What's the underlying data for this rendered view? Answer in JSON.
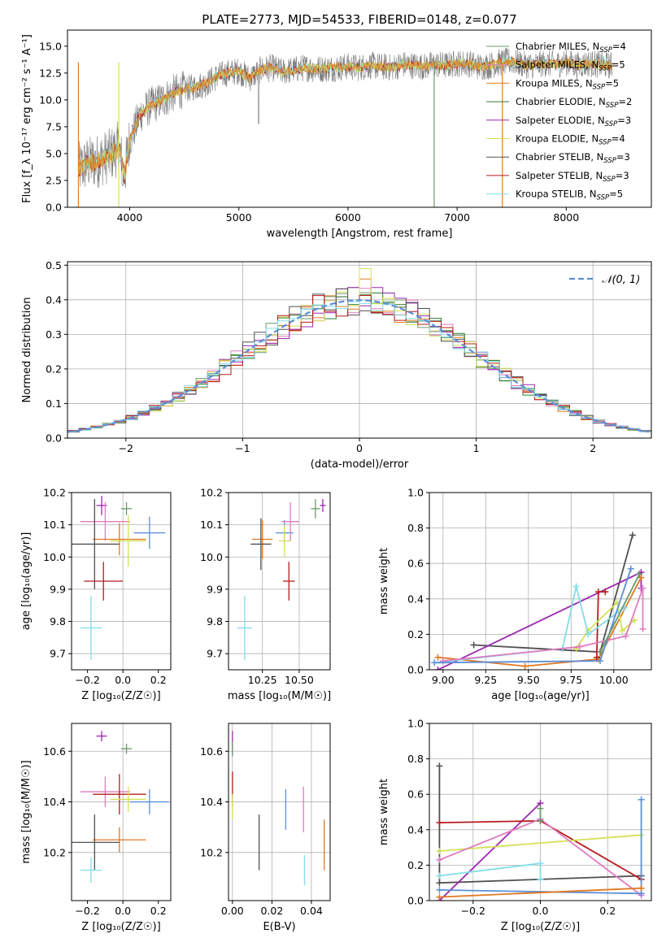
{
  "colors": [
    "#6a9a6a",
    "#e07bc0",
    "#e08020",
    "#2e7d32",
    "#9c27b0",
    "#d4e157",
    "#505050",
    "#b71c1c",
    "#80deea"
  ],
  "colors_named": {
    "chabrier_miles": "#6a9a6a",
    "salpeter_miles": "#8a8a8a",
    "kroupa_miles": "#e08020",
    "chabrier_elodie": "#2e7d32",
    "salpeter_elodie": "#9c27b0",
    "kroupa_elodie": "#d4e157",
    "chabrier_stelib": "#505050",
    "salpeter_stelib": "#b71c1c",
    "kroupa_stelib": "#80deea",
    "blue": "#5b8fd9",
    "pink": "#e07bc0",
    "orange": "#e07820",
    "dkgray": "#505050",
    "red": "#b71c1c",
    "cyan": "#80deea",
    "purple": "#9c27b0",
    "lime": "#d4e157",
    "green": "#6a9a6a"
  },
  "chart_data": [
    {
      "type": "line",
      "title": "PLATE=2773, MJD=54533, FIBERID=0148, z=0.077",
      "xlabel": "wavelength [Angstrom, rest frame]",
      "ylabel": "Flux [f_λ 10⁻¹⁷ erg cm⁻² s⁻¹ A⁻¹]",
      "xlim": [
        3430,
        8780
      ],
      "ylim": [
        0,
        16.5
      ],
      "xticks": [
        "4000",
        "5000",
        "6000",
        "7000",
        "8000"
      ],
      "yticks": [
        "0.0",
        "2.5",
        "5.0",
        "7.5",
        "10.0",
        "12.5",
        "15.0"
      ],
      "legend_position": "right",
      "legend": [
        {
          "label": "Chabrier MILES, N",
          "sub": "SSP",
          "val": "=4"
        },
        {
          "label": "Salpeter MILES, N",
          "sub": "SSP",
          "val": "=5"
        },
        {
          "label": "Kroupa MILES, N",
          "sub": "SSP",
          "val": "=5"
        },
        {
          "label": "Chabrier ELODIE, N",
          "sub": "SSP",
          "val": "=2"
        },
        {
          "label": "Salpeter ELODIE, N",
          "sub": "SSP",
          "val": "=3"
        },
        {
          "label": "Kroupa ELODIE, N",
          "sub": "SSP",
          "val": "=4"
        },
        {
          "label": "Chabrier STELIB, N",
          "sub": "SSP",
          "val": "=3"
        },
        {
          "label": "Salpeter STELIB, N",
          "sub": "SSP",
          "val": "=3"
        },
        {
          "label": "Kroupa STELIB, N",
          "sub": "SSP",
          "val": "=5"
        }
      ],
      "spectrum_anchors": {
        "x": [
          3530,
          3600,
          3700,
          3800,
          3900,
          3950,
          4000,
          4100,
          4200,
          4300,
          4400,
          4500,
          4600,
          4700,
          4800,
          4900,
          5000,
          5100,
          5200,
          5300,
          5400,
          5500,
          5600,
          5700,
          5800,
          5900,
          6000,
          6100,
          6200,
          6300,
          6400,
          6500,
          6600,
          6700,
          6800,
          6900,
          7000,
          7100,
          7200,
          7300,
          7400,
          7500,
          7600,
          7700,
          7800,
          7900,
          8000,
          8100,
          8200,
          8300,
          8400
        ],
        "y": [
          3.5,
          4.0,
          4.3,
          4.7,
          5.5,
          3.0,
          6.2,
          8.7,
          9.5,
          10.0,
          10.6,
          11.0,
          11.2,
          11.5,
          12.2,
          12.5,
          12.7,
          12.0,
          12.8,
          13.0,
          12.6,
          12.8,
          13.0,
          12.9,
          12.9,
          13.0,
          13.1,
          13.0,
          13.2,
          13.1,
          13.0,
          13.3,
          13.2,
          13.1,
          13.3,
          13.2,
          13.4,
          13.4,
          13.1,
          13.2,
          13.5,
          13.6,
          13.3,
          13.2,
          13.4,
          13.3,
          13.5,
          13.2,
          13.4,
          13.3,
          13.2
        ]
      },
      "vertical_spikes": [
        {
          "x": 3530,
          "color": "#e08020"
        },
        {
          "x": 3900,
          "color": "#d4e157"
        },
        {
          "x": 6790,
          "color": "#6a9a6a"
        },
        {
          "x": 7415,
          "color": "#e08020"
        }
      ]
    },
    {
      "type": "bar",
      "subtype": "step-histograms",
      "xlabel": "(data-model)/error",
      "ylabel": "Normed distribution",
      "xlim": [
        -2.5,
        2.5
      ],
      "ylim": [
        0,
        0.51
      ],
      "xticks": [
        "−2",
        "−1",
        "0",
        "1",
        "2"
      ],
      "yticks": [
        "0.0",
        "0.1",
        "0.2",
        "0.3",
        "0.4",
        "0.5"
      ],
      "grid": true,
      "legend_position": "top-right",
      "legend": [
        {
          "label": "𝒩(0, 1)",
          "style": "dashed",
          "color": "#5b8fd9"
        }
      ],
      "bin_width": 0.1,
      "peak_values": [
        0.46,
        0.49
      ],
      "series_count": 9
    },
    {
      "type": "scatter",
      "subtype": "errorbar",
      "xlabel": "Z [log₁₀(Z/Z☉)]",
      "ylabel": "age  [log₁₀(age/yr)]",
      "xlim": [
        -0.29,
        0.27
      ],
      "ylim": [
        9.65,
        10.2
      ],
      "xticks": [
        "−0.2",
        "0.0",
        "0.2"
      ],
      "yticks": [
        "9.7",
        "9.8",
        "9.9",
        "10.0",
        "10.1",
        "10.2"
      ],
      "points": [
        {
          "x": -0.12,
          "y": 10.16,
          "xerr": 0.03,
          "yerr": 0.03,
          "color": "#9c27b0"
        },
        {
          "x": 0.02,
          "y": 10.15,
          "xerr": 0.03,
          "yerr": 0.02,
          "color": "#6a9a6a"
        },
        {
          "x": 0.15,
          "y": 10.075,
          "xerr": 0.09,
          "yerr": 0.05,
          "color": "#5b8fd9"
        },
        {
          "x": -0.1,
          "y": 10.11,
          "xerr": 0.14,
          "yerr": 0.06,
          "color": "#e07bc0"
        },
        {
          "x": -0.02,
          "y": 10.055,
          "xerr": 0.15,
          "yerr": 0.05,
          "color": "#e07820"
        },
        {
          "x": 0.03,
          "y": 10.05,
          "xerr": 0.1,
          "yerr": 0.08,
          "color": "#d4e157"
        },
        {
          "x": -0.16,
          "y": 10.04,
          "xerr": 0.14,
          "yerr": 0.14,
          "color": "#505050"
        },
        {
          "x": -0.11,
          "y": 9.925,
          "xerr": 0.11,
          "yerr": 0.06,
          "color": "#b71c1c"
        },
        {
          "x": -0.18,
          "y": 9.78,
          "xerr": 0.06,
          "yerr": 0.1,
          "color": "#80deea"
        }
      ]
    },
    {
      "type": "scatter",
      "subtype": "errorbar",
      "xlabel": "mass [log₁₀(M/M☉)]",
      "xlim": [
        10.02,
        10.71
      ],
      "ylim": [
        9.65,
        10.2
      ],
      "xticks": [
        "10.25",
        "10.50"
      ],
      "yticks": [
        "9.7",
        "9.8",
        "9.9",
        "10.0",
        "10.1",
        "10.2"
      ],
      "points": [
        {
          "x": 10.66,
          "y": 10.16,
          "xerr": 0.02,
          "yerr": 0.02,
          "color": "#9c27b0"
        },
        {
          "x": 10.61,
          "y": 10.15,
          "xerr": 0.03,
          "yerr": 0.03,
          "color": "#6a9a6a"
        },
        {
          "x": 10.4,
          "y": 10.075,
          "xerr": 0.06,
          "yerr": 0.04,
          "color": "#5b8fd9"
        },
        {
          "x": 10.44,
          "y": 10.11,
          "xerr": 0.06,
          "yerr": 0.06,
          "color": "#e07bc0"
        },
        {
          "x": 10.25,
          "y": 10.055,
          "xerr": 0.07,
          "yerr": 0.06,
          "color": "#e07820"
        },
        {
          "x": 10.4,
          "y": 10.05,
          "xerr": 0.04,
          "yerr": 0.05,
          "color": "#d4e157"
        },
        {
          "x": 10.24,
          "y": 10.04,
          "xerr": 0.07,
          "yerr": 0.08,
          "color": "#505050"
        },
        {
          "x": 10.43,
          "y": 9.925,
          "xerr": 0.04,
          "yerr": 0.06,
          "color": "#b71c1c"
        },
        {
          "x": 10.13,
          "y": 9.78,
          "xerr": 0.05,
          "yerr": 0.1,
          "color": "#80deea"
        }
      ]
    },
    {
      "type": "line",
      "xlabel": "age  [log₁₀(age/yr)]",
      "ylabel": "mass weight",
      "xlim": [
        8.92,
        10.22
      ],
      "ylim": [
        0,
        1
      ],
      "xticks": [
        "9.00",
        "9.25",
        "9.50",
        "9.75",
        "10.00"
      ],
      "yticks": [
        "0.0",
        "0.2",
        "0.4",
        "0.6",
        "0.8",
        "1.0"
      ],
      "grid": true,
      "series": [
        {
          "color": "#505050",
          "x": [
            9.18,
            9.92,
            10.11
          ],
          "y": [
            0.14,
            0.1,
            0.76
          ]
        },
        {
          "color": "#9c27b0",
          "x": [
            8.97,
            10.16,
            10.16
          ],
          "y": [
            0.0,
            0.55,
            0.46
          ]
        },
        {
          "color": "#e07820",
          "x": [
            8.97,
            9.48,
            9.91,
            10.16
          ],
          "y": [
            0.07,
            0.02,
            0.06,
            0.52
          ]
        },
        {
          "color": "#b71c1c",
          "x": [
            9.9,
            9.91,
            9.95
          ],
          "y": [
            0.07,
            0.44,
            0.44
          ]
        },
        {
          "color": "#d4e157",
          "x": [
            9.78,
            9.85,
            10.02,
            10.05,
            10.12
          ],
          "y": [
            0.12,
            0.22,
            0.38,
            0.22,
            0.28
          ]
        },
        {
          "color": "#80deea",
          "x": [
            8.95,
            9.7,
            9.78,
            9.85,
            10.06
          ],
          "y": [
            0.04,
            0.12,
            0.47,
            0.2,
            0.35
          ]
        },
        {
          "color": "#e07bc0",
          "x": [
            9.0,
            9.8,
            10.07,
            10.17,
            10.17
          ],
          "y": [
            0.05,
            0.13,
            0.19,
            0.46,
            0.23
          ]
        },
        {
          "color": "#5b8fd9",
          "x": [
            8.95,
            9.92,
            10.1
          ],
          "y": [
            0.04,
            0.05,
            0.57
          ]
        },
        {
          "color": "#6a9a6a",
          "x": [
            9.92,
            10.15
          ],
          "y": [
            0.1,
            0.54
          ]
        }
      ]
    },
    {
      "type": "scatter",
      "subtype": "errorbar",
      "xlabel": "Z [log₁₀(Z/Z☉)]",
      "ylabel": "mass [log₁₀(M/M☉)]",
      "xlim": [
        -0.29,
        0.27
      ],
      "ylim": [
        10.01,
        10.71
      ],
      "xticks": [
        "−0.2",
        "0.0",
        "0.2"
      ],
      "yticks": [
        "10.2",
        "10.4",
        "10.6"
      ],
      "points": [
        {
          "x": -0.12,
          "y": 10.66,
          "xerr": 0.03,
          "yerr": 0.02,
          "color": "#9c27b0"
        },
        {
          "x": 0.02,
          "y": 10.61,
          "xerr": 0.03,
          "yerr": 0.02,
          "color": "#6a9a6a"
        },
        {
          "x": 0.15,
          "y": 10.4,
          "xerr": 0.11,
          "yerr": 0.05,
          "color": "#5b8fd9"
        },
        {
          "x": -0.1,
          "y": 10.44,
          "xerr": 0.14,
          "yerr": 0.06,
          "color": "#e07bc0"
        },
        {
          "x": -0.02,
          "y": 10.43,
          "xerr": 0.15,
          "yerr": 0.08,
          "color": "#b71c1c"
        },
        {
          "x": 0.03,
          "y": 10.41,
          "xerr": 0.1,
          "yerr": 0.05,
          "color": "#d4e157"
        },
        {
          "x": -0.02,
          "y": 10.25,
          "xerr": 0.15,
          "yerr": 0.05,
          "color": "#e07820"
        },
        {
          "x": -0.16,
          "y": 10.24,
          "xerr": 0.14,
          "yerr": 0.11,
          "color": "#505050"
        },
        {
          "x": -0.18,
          "y": 10.13,
          "xerr": 0.06,
          "yerr": 0.05,
          "color": "#80deea"
        }
      ]
    },
    {
      "type": "scatter",
      "subtype": "errorbar",
      "xlabel": "E(B-V)",
      "xlim": [
        -0.002,
        0.0495
      ],
      "ylim": [
        10.01,
        10.71
      ],
      "xticks": [
        "0.00",
        "0.02",
        "0.04"
      ],
      "yticks": [
        "10.2",
        "10.4",
        "10.6"
      ],
      "points": [
        {
          "x": 0.0,
          "y": 10.63,
          "yerr": 0.05,
          "color": "#9c27b0"
        },
        {
          "x": 0.0,
          "y": 10.45,
          "yerr": 0.07,
          "color": "#b71c1c"
        },
        {
          "x": 0.0,
          "y": 10.38,
          "yerr": 0.05,
          "color": "#d4e157"
        },
        {
          "x": 0.0,
          "y": 10.61,
          "yerr": 0.03,
          "color": "#6a9a6a"
        },
        {
          "x": 0.0135,
          "y": 10.24,
          "yerr": 0.11,
          "color": "#505050"
        },
        {
          "x": 0.027,
          "y": 10.37,
          "yerr": 0.08,
          "color": "#5b8fd9"
        },
        {
          "x": 0.036,
          "y": 10.37,
          "yerr": 0.09,
          "color": "#e07bc0"
        },
        {
          "x": 0.0365,
          "y": 10.13,
          "yerr": 0.06,
          "color": "#80deea"
        },
        {
          "x": 0.0465,
          "y": 10.23,
          "yerr": 0.1,
          "color": "#e07820"
        }
      ]
    },
    {
      "type": "line",
      "xlabel": "Z [log₁₀(Z/Z☉)]",
      "ylabel": "mass weight",
      "xlim": [
        -0.33,
        0.33
      ],
      "ylim": [
        0,
        1
      ],
      "xticks": [
        "−0.2",
        "0.0",
        "0.2"
      ],
      "yticks": [
        "0.0",
        "0.2",
        "0.4",
        "0.6",
        "0.8",
        "1.0"
      ],
      "grid": true,
      "series": [
        {
          "color": "#505050",
          "x": [
            -0.3,
            -0.3,
            0.3
          ],
          "y": [
            0.76,
            0.1,
            0.14
          ]
        },
        {
          "color": "#9c27b0",
          "x": [
            -0.3,
            0.0
          ],
          "y": [
            0.0,
            0.55
          ]
        },
        {
          "color": "#b71c1c",
          "x": [
            -0.3,
            0.0,
            0.3
          ],
          "y": [
            0.44,
            0.45,
            0.12
          ]
        },
        {
          "color": "#d4e157",
          "x": [
            -0.3,
            0.3
          ],
          "y": [
            0.28,
            0.37
          ]
        },
        {
          "color": "#e07bc0",
          "x": [
            -0.3,
            0.0,
            0.3
          ],
          "y": [
            0.23,
            0.46,
            0.03
          ]
        },
        {
          "color": "#80deea",
          "x": [
            -0.3,
            0.0,
            0.0
          ],
          "y": [
            0.14,
            0.21,
            0.12
          ]
        },
        {
          "color": "#5b8fd9",
          "x": [
            -0.3,
            0.3,
            0.3
          ],
          "y": [
            0.06,
            0.04,
            0.57
          ]
        },
        {
          "color": "#e07820",
          "x": [
            -0.3,
            0.3
          ],
          "y": [
            0.02,
            0.07
          ]
        },
        {
          "color": "#6a9a6a",
          "x": [
            0.0,
            0.0
          ],
          "y": [
            0.45,
            0.52
          ]
        }
      ]
    }
  ]
}
